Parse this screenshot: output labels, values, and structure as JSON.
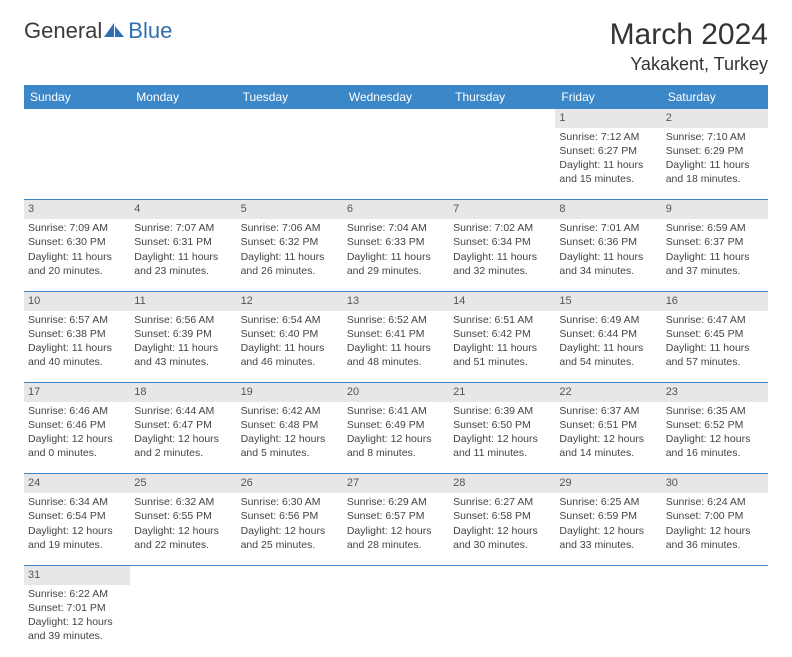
{
  "logo": {
    "part1": "General",
    "part2": "Blue"
  },
  "title": "March 2024",
  "location": "Yakakent, Turkey",
  "colors": {
    "header_bg": "#3b87c8",
    "header_text": "#ffffff",
    "daynum_bg": "#e7e7e7",
    "border": "#3b87c8",
    "logo_blue": "#2f6fb3"
  },
  "weekdays": [
    "Sunday",
    "Monday",
    "Tuesday",
    "Wednesday",
    "Thursday",
    "Friday",
    "Saturday"
  ],
  "weeks": [
    {
      "nums": [
        "",
        "",
        "",
        "",
        "",
        "1",
        "2"
      ],
      "cells": [
        null,
        null,
        null,
        null,
        null,
        {
          "sunrise": "Sunrise: 7:12 AM",
          "sunset": "Sunset: 6:27 PM",
          "day1": "Daylight: 11 hours",
          "day2": "and 15 minutes."
        },
        {
          "sunrise": "Sunrise: 7:10 AM",
          "sunset": "Sunset: 6:29 PM",
          "day1": "Daylight: 11 hours",
          "day2": "and 18 minutes."
        }
      ]
    },
    {
      "nums": [
        "3",
        "4",
        "5",
        "6",
        "7",
        "8",
        "9"
      ],
      "cells": [
        {
          "sunrise": "Sunrise: 7:09 AM",
          "sunset": "Sunset: 6:30 PM",
          "day1": "Daylight: 11 hours",
          "day2": "and 20 minutes."
        },
        {
          "sunrise": "Sunrise: 7:07 AM",
          "sunset": "Sunset: 6:31 PM",
          "day1": "Daylight: 11 hours",
          "day2": "and 23 minutes."
        },
        {
          "sunrise": "Sunrise: 7:06 AM",
          "sunset": "Sunset: 6:32 PM",
          "day1": "Daylight: 11 hours",
          "day2": "and 26 minutes."
        },
        {
          "sunrise": "Sunrise: 7:04 AM",
          "sunset": "Sunset: 6:33 PM",
          "day1": "Daylight: 11 hours",
          "day2": "and 29 minutes."
        },
        {
          "sunrise": "Sunrise: 7:02 AM",
          "sunset": "Sunset: 6:34 PM",
          "day1": "Daylight: 11 hours",
          "day2": "and 32 minutes."
        },
        {
          "sunrise": "Sunrise: 7:01 AM",
          "sunset": "Sunset: 6:36 PM",
          "day1": "Daylight: 11 hours",
          "day2": "and 34 minutes."
        },
        {
          "sunrise": "Sunrise: 6:59 AM",
          "sunset": "Sunset: 6:37 PM",
          "day1": "Daylight: 11 hours",
          "day2": "and 37 minutes."
        }
      ]
    },
    {
      "nums": [
        "10",
        "11",
        "12",
        "13",
        "14",
        "15",
        "16"
      ],
      "cells": [
        {
          "sunrise": "Sunrise: 6:57 AM",
          "sunset": "Sunset: 6:38 PM",
          "day1": "Daylight: 11 hours",
          "day2": "and 40 minutes."
        },
        {
          "sunrise": "Sunrise: 6:56 AM",
          "sunset": "Sunset: 6:39 PM",
          "day1": "Daylight: 11 hours",
          "day2": "and 43 minutes."
        },
        {
          "sunrise": "Sunrise: 6:54 AM",
          "sunset": "Sunset: 6:40 PM",
          "day1": "Daylight: 11 hours",
          "day2": "and 46 minutes."
        },
        {
          "sunrise": "Sunrise: 6:52 AM",
          "sunset": "Sunset: 6:41 PM",
          "day1": "Daylight: 11 hours",
          "day2": "and 48 minutes."
        },
        {
          "sunrise": "Sunrise: 6:51 AM",
          "sunset": "Sunset: 6:42 PM",
          "day1": "Daylight: 11 hours",
          "day2": "and 51 minutes."
        },
        {
          "sunrise": "Sunrise: 6:49 AM",
          "sunset": "Sunset: 6:44 PM",
          "day1": "Daylight: 11 hours",
          "day2": "and 54 minutes."
        },
        {
          "sunrise": "Sunrise: 6:47 AM",
          "sunset": "Sunset: 6:45 PM",
          "day1": "Daylight: 11 hours",
          "day2": "and 57 minutes."
        }
      ]
    },
    {
      "nums": [
        "17",
        "18",
        "19",
        "20",
        "21",
        "22",
        "23"
      ],
      "cells": [
        {
          "sunrise": "Sunrise: 6:46 AM",
          "sunset": "Sunset: 6:46 PM",
          "day1": "Daylight: 12 hours",
          "day2": "and 0 minutes."
        },
        {
          "sunrise": "Sunrise: 6:44 AM",
          "sunset": "Sunset: 6:47 PM",
          "day1": "Daylight: 12 hours",
          "day2": "and 2 minutes."
        },
        {
          "sunrise": "Sunrise: 6:42 AM",
          "sunset": "Sunset: 6:48 PM",
          "day1": "Daylight: 12 hours",
          "day2": "and 5 minutes."
        },
        {
          "sunrise": "Sunrise: 6:41 AM",
          "sunset": "Sunset: 6:49 PM",
          "day1": "Daylight: 12 hours",
          "day2": "and 8 minutes."
        },
        {
          "sunrise": "Sunrise: 6:39 AM",
          "sunset": "Sunset: 6:50 PM",
          "day1": "Daylight: 12 hours",
          "day2": "and 11 minutes."
        },
        {
          "sunrise": "Sunrise: 6:37 AM",
          "sunset": "Sunset: 6:51 PM",
          "day1": "Daylight: 12 hours",
          "day2": "and 14 minutes."
        },
        {
          "sunrise": "Sunrise: 6:35 AM",
          "sunset": "Sunset: 6:52 PM",
          "day1": "Daylight: 12 hours",
          "day2": "and 16 minutes."
        }
      ]
    },
    {
      "nums": [
        "24",
        "25",
        "26",
        "27",
        "28",
        "29",
        "30"
      ],
      "cells": [
        {
          "sunrise": "Sunrise: 6:34 AM",
          "sunset": "Sunset: 6:54 PM",
          "day1": "Daylight: 12 hours",
          "day2": "and 19 minutes."
        },
        {
          "sunrise": "Sunrise: 6:32 AM",
          "sunset": "Sunset: 6:55 PM",
          "day1": "Daylight: 12 hours",
          "day2": "and 22 minutes."
        },
        {
          "sunrise": "Sunrise: 6:30 AM",
          "sunset": "Sunset: 6:56 PM",
          "day1": "Daylight: 12 hours",
          "day2": "and 25 minutes."
        },
        {
          "sunrise": "Sunrise: 6:29 AM",
          "sunset": "Sunset: 6:57 PM",
          "day1": "Daylight: 12 hours",
          "day2": "and 28 minutes."
        },
        {
          "sunrise": "Sunrise: 6:27 AM",
          "sunset": "Sunset: 6:58 PM",
          "day1": "Daylight: 12 hours",
          "day2": "and 30 minutes."
        },
        {
          "sunrise": "Sunrise: 6:25 AM",
          "sunset": "Sunset: 6:59 PM",
          "day1": "Daylight: 12 hours",
          "day2": "and 33 minutes."
        },
        {
          "sunrise": "Sunrise: 6:24 AM",
          "sunset": "Sunset: 7:00 PM",
          "day1": "Daylight: 12 hours",
          "day2": "and 36 minutes."
        }
      ]
    },
    {
      "nums": [
        "31",
        "",
        "",
        "",
        "",
        "",
        ""
      ],
      "cells": [
        {
          "sunrise": "Sunrise: 6:22 AM",
          "sunset": "Sunset: 7:01 PM",
          "day1": "Daylight: 12 hours",
          "day2": "and 39 minutes."
        },
        null,
        null,
        null,
        null,
        null,
        null
      ]
    }
  ]
}
